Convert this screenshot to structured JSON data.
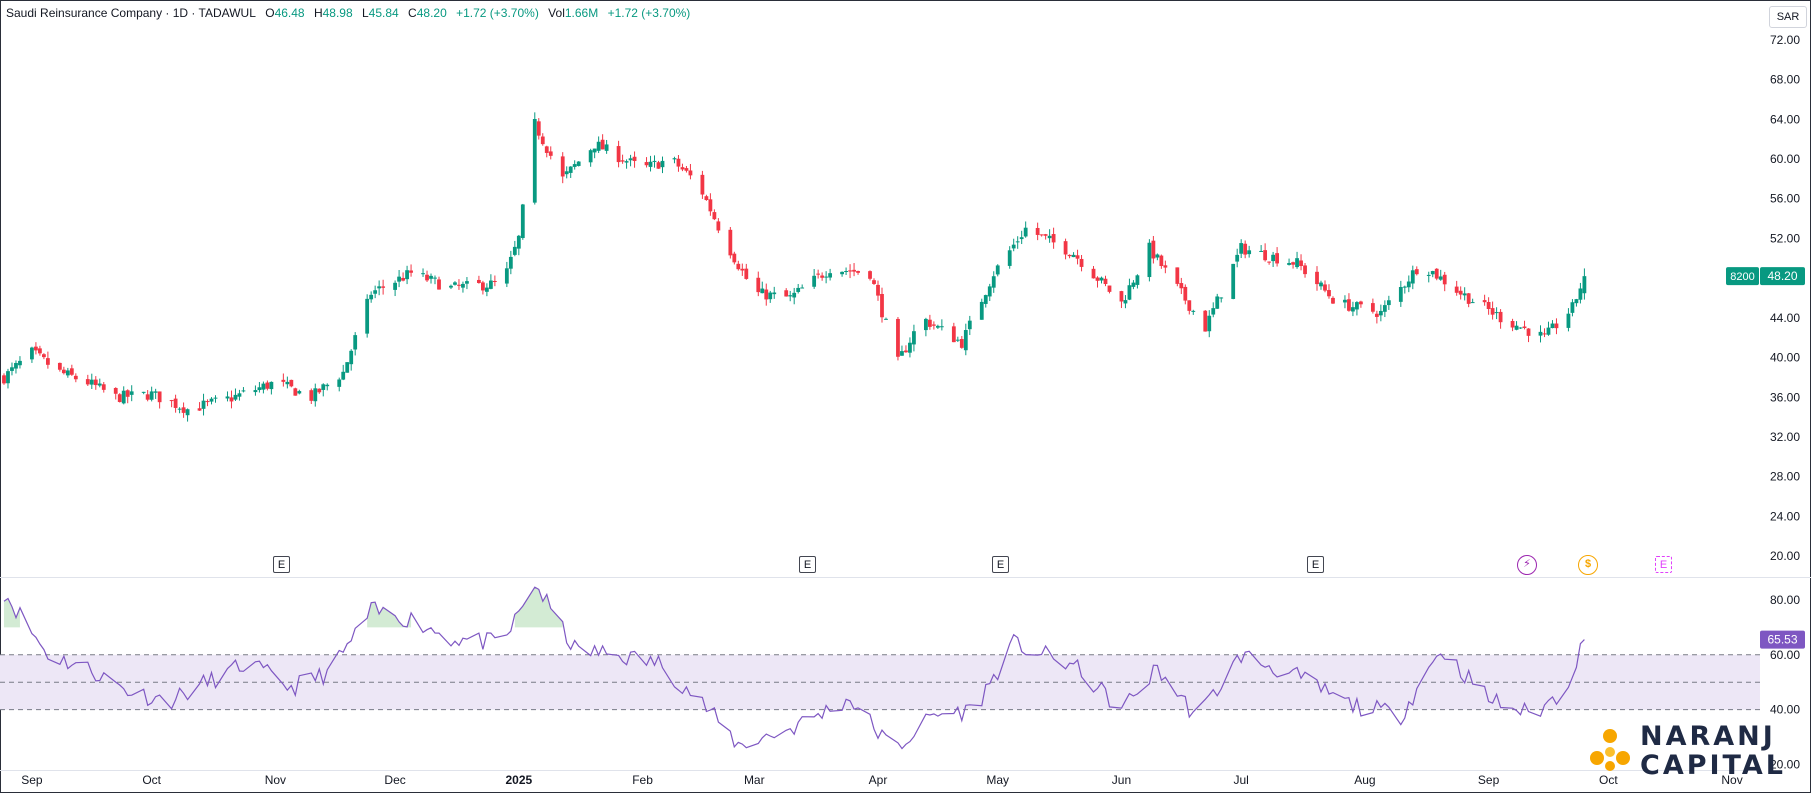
{
  "header": {
    "symbol_name": "Saudi Reinsurance Company · 1D · TADAWUL",
    "open_label": "O",
    "open_value": "46.48",
    "high_label": "H",
    "high_value": "48.98",
    "low_label": "L",
    "low_value": "45.84",
    "close_label": "C",
    "close_value": "48.20",
    "change": "+1.72 (+3.70%)",
    "volume_label": "Vol",
    "volume_value": "1.66M",
    "volume_change": "+1.72 (+3.70%)"
  },
  "currency_button": "SAR",
  "price_axis": {
    "ticks": [
      "72.00",
      "68.00",
      "64.00",
      "60.00",
      "56.00",
      "52.00",
      "48.00",
      "44.00",
      "40.00",
      "36.00",
      "32.00",
      "28.00",
      "24.00",
      "20.00"
    ],
    "symbol_tag": "8200",
    "last_price_tag": "48.20"
  },
  "rsi_axis": {
    "ticks": [
      "80.00",
      "60.00",
      "40.00",
      "20.00"
    ],
    "last_value_tag": "65.53"
  },
  "time_axis": {
    "labels": [
      "Sep",
      "Oct",
      "Nov",
      "Dec",
      "2025",
      "Feb",
      "Mar",
      "Apr",
      "May",
      "Jun",
      "Jul",
      "Aug",
      "Sep",
      "Oct",
      "Nov"
    ]
  },
  "event_markers": {
    "earnings_letter": "E",
    "dividend_letter": "$"
  },
  "logo": {
    "line1": "NARANJ",
    "line2": "CAPITAL"
  },
  "colors": {
    "up": "#089981",
    "down": "#f23645",
    "rsi_line": "#7e57c2",
    "rsi_band": "#ede7f6",
    "accent_orange": "#f7a600"
  },
  "chart_data": [
    {
      "type": "candlestick",
      "title": "Saudi Reinsurance Company · 1D · TADAWUL",
      "ylabel": "SAR",
      "ylim": [
        18,
        74
      ],
      "xlabels": [
        "Sep",
        "Oct",
        "Nov",
        "Dec",
        "2025",
        "Feb",
        "Mar",
        "Apr",
        "May",
        "Jun",
        "Jul",
        "Aug",
        "Sep",
        "Oct",
        "Nov"
      ],
      "anchor_closes": [
        [
          "2024-08-25",
          38.0
        ],
        [
          "2024-09-01",
          40.5
        ],
        [
          "2024-09-08",
          38.5
        ],
        [
          "2024-09-15",
          37.5
        ],
        [
          "2024-09-22",
          36.0
        ],
        [
          "2024-10-01",
          36.3
        ],
        [
          "2024-10-10",
          34.8
        ],
        [
          "2024-10-20",
          35.8
        ],
        [
          "2024-11-01",
          37.5
        ],
        [
          "2024-11-10",
          36.0
        ],
        [
          "2024-11-18",
          38.5
        ],
        [
          "2024-11-25",
          46.5
        ],
        [
          "2024-12-05",
          48.5
        ],
        [
          "2024-12-15",
          47.0
        ],
        [
          "2024-12-28",
          47.5
        ],
        [
          "2025-01-01",
          52.0
        ],
        [
          "2025-01-05",
          63.5
        ],
        [
          "2025-01-12",
          58.0
        ],
        [
          "2025-01-20",
          61.5
        ],
        [
          "2025-02-01",
          59.0
        ],
        [
          "2025-02-08",
          60.0
        ],
        [
          "2025-02-15",
          57.5
        ],
        [
          "2025-02-22",
          51.5
        ],
        [
          "2025-03-01",
          46.5
        ],
        [
          "2025-03-10",
          46.0
        ],
        [
          "2025-03-20",
          49.0
        ],
        [
          "2025-03-30",
          48.5
        ],
        [
          "2025-04-06",
          39.5
        ],
        [
          "2025-04-12",
          44.0
        ],
        [
          "2025-04-22",
          41.5
        ],
        [
          "2025-04-30",
          48.5
        ],
        [
          "2025-05-08",
          53.0
        ],
        [
          "2025-05-20",
          50.5
        ],
        [
          "2025-06-01",
          45.5
        ],
        [
          "2025-06-08",
          51.0
        ],
        [
          "2025-06-15",
          47.0
        ],
        [
          "2025-06-22",
          43.0
        ],
        [
          "2025-07-01",
          51.0
        ],
        [
          "2025-07-15",
          49.5
        ],
        [
          "2025-07-25",
          45.5
        ],
        [
          "2025-08-05",
          44.5
        ],
        [
          "2025-08-15",
          49.5
        ],
        [
          "2025-08-25",
          46.5
        ],
        [
          "2025-09-05",
          43.8
        ],
        [
          "2025-09-15",
          42.0
        ],
        [
          "2025-09-22",
          45.0
        ],
        [
          "2025-09-25",
          48.2
        ]
      ],
      "last": {
        "open": 46.48,
        "high": 48.98,
        "low": 45.84,
        "close": 48.2
      }
    },
    {
      "type": "line",
      "title": "RSI",
      "ylim": [
        18,
        88
      ],
      "bands": {
        "upper": 60,
        "middle": 50,
        "lower": 40
      },
      "anchor_values": [
        [
          "2024-08-25",
          83
        ],
        [
          "2024-09-05",
          60
        ],
        [
          "2024-09-15",
          55
        ],
        [
          "2024-09-25",
          47
        ],
        [
          "2024-10-05",
          43
        ],
        [
          "2024-10-15",
          50
        ],
        [
          "2024-10-25",
          57
        ],
        [
          "2024-11-05",
          48
        ],
        [
          "2024-11-15",
          54
        ],
        [
          "2024-11-25",
          76
        ],
        [
          "2024-12-05",
          73
        ],
        [
          "2024-12-15",
          66
        ],
        [
          "2024-12-28",
          64
        ],
        [
          "2025-01-05",
          86
        ],
        [
          "2025-01-15",
          62
        ],
        [
          "2025-01-25",
          60
        ],
        [
          "2025-02-05",
          57
        ],
        [
          "2025-02-15",
          44
        ],
        [
          "2025-02-25",
          27
        ],
        [
          "2025-03-10",
          33
        ],
        [
          "2025-03-25",
          44
        ],
        [
          "2025-04-05",
          25
        ],
        [
          "2025-04-15",
          38
        ],
        [
          "2025-04-25",
          40
        ],
        [
          "2025-05-05",
          64
        ],
        [
          "2025-05-20",
          56
        ],
        [
          "2025-06-01",
          40
        ],
        [
          "2025-06-10",
          55
        ],
        [
          "2025-06-20",
          37
        ],
        [
          "2025-07-01",
          60
        ],
        [
          "2025-07-15",
          52
        ],
        [
          "2025-07-28",
          42
        ],
        [
          "2025-08-10",
          38
        ],
        [
          "2025-08-20",
          62
        ],
        [
          "2025-09-01",
          44
        ],
        [
          "2025-09-12",
          38
        ],
        [
          "2025-09-20",
          47
        ],
        [
          "2025-09-25",
          65.53
        ]
      ]
    }
  ]
}
